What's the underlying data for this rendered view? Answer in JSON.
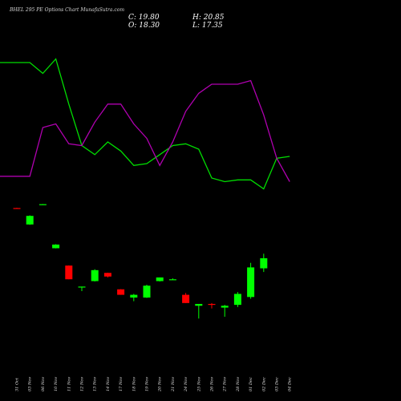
{
  "header": {
    "title": "BHEL 295 PE Options Chart MunafaSutra.com",
    "close": "C: 19.80",
    "high": "H: 20.85",
    "open": "O: 18.30",
    "low": "L: 17.35"
  },
  "colors": {
    "background": "#000000",
    "up_candle": "#00ff00",
    "down_candle": "#ff0000",
    "green_line": "#00dd00",
    "purple_line": "#b000b0"
  },
  "chart_data": {
    "type": "candlestick",
    "title": "BHEL 295 PE Options Chart MunafaSutra.com",
    "categories": [
      "31 Oct",
      "03 Nov",
      "06 Nov",
      "10 Nov",
      "11 Nov",
      "12 Nov",
      "13 Nov",
      "14 Nov",
      "17 Nov",
      "18 Nov",
      "19 Nov",
      "20 Nov",
      "21 Nov",
      "24 Nov",
      "25 Nov",
      "26 Nov",
      "27 Nov",
      "28 Nov",
      "01 Dec",
      "02 Dec",
      "03 Dec",
      "04 Dec"
    ],
    "candles": [
      {
        "date": "31 Oct",
        "open": 67.0,
        "high": 67.1,
        "low": 66.9,
        "close": 66.9
      },
      {
        "date": "03 Nov",
        "open": 58.0,
        "high": 63.0,
        "low": 57.8,
        "close": 62.7
      },
      {
        "date": "06 Nov",
        "open": 69.1,
        "high": 69.2,
        "low": 69.0,
        "close": 69.1
      },
      {
        "date": "10 Nov",
        "open": 45.0,
        "high": 47.2,
        "low": 44.9,
        "close": 47.0
      },
      {
        "date": "11 Nov",
        "open": 35.5,
        "high": 35.6,
        "low": 28.0,
        "close": 28.0
      },
      {
        "date": "12 Nov",
        "open": 23.5,
        "high": 24.0,
        "low": 21.5,
        "close": 24.0
      },
      {
        "date": "13 Nov",
        "open": 27.0,
        "high": 33.5,
        "low": 26.8,
        "close": 33.0
      },
      {
        "date": "14 Nov",
        "open": 31.5,
        "high": 31.6,
        "low": 29.0,
        "close": 29.5
      },
      {
        "date": "17 Nov",
        "open": 22.5,
        "high": 22.6,
        "low": 19.5,
        "close": 19.5
      },
      {
        "date": "18 Nov",
        "open": 18.0,
        "high": 20.0,
        "low": 16.0,
        "close": 19.5
      },
      {
        "date": "19 Nov",
        "open": 18.0,
        "high": 25.0,
        "low": 17.8,
        "close": 24.5
      },
      {
        "date": "20 Nov",
        "open": 27.0,
        "high": 29.0,
        "low": 26.8,
        "close": 29.0
      },
      {
        "date": "21 Nov",
        "open": 28.0,
        "high": 28.5,
        "low": 27.8,
        "close": 28.0
      },
      {
        "date": "24 Nov",
        "open": 19.5,
        "high": 20.5,
        "low": 15.0,
        "close": 15.0
      },
      {
        "date": "25 Nov",
        "open": 13.5,
        "high": 14.5,
        "low": 6.5,
        "close": 14.5
      },
      {
        "date": "26 Nov",
        "open": 14.5,
        "high": 15.0,
        "low": 12.0,
        "close": 14.0
      },
      {
        "date": "27 Nov",
        "open": 12.5,
        "high": 14.0,
        "low": 7.5,
        "close": 13.5
      },
      {
        "date": "28 Nov",
        "open": 14.0,
        "high": 21.0,
        "low": 12.8,
        "close": 20.0
      },
      {
        "date": "01 Dec",
        "open": 18.3,
        "high": 37.0,
        "low": 17.35,
        "close": 34.5
      },
      {
        "date": "02 Dec",
        "open": 34.0,
        "high": 42.0,
        "low": 32.0,
        "close": 39.5
      }
    ],
    "overlay_lines": [
      {
        "values": [
          152,
          152,
          146,
          154,
          129,
          106,
          101,
          108,
          103,
          95,
          96,
          101,
          106,
          107,
          104,
          88,
          86,
          87,
          87,
          82,
          99,
          100
        ]
      },
      {
        "values": [
          89,
          89,
          116,
          118,
          107,
          106,
          119,
          129,
          129,
          118,
          110,
          95,
          108,
          125,
          135,
          140,
          140,
          140,
          142,
          123,
          99,
          86
        ]
      }
    ],
    "grid": false,
    "legend": "none"
  }
}
